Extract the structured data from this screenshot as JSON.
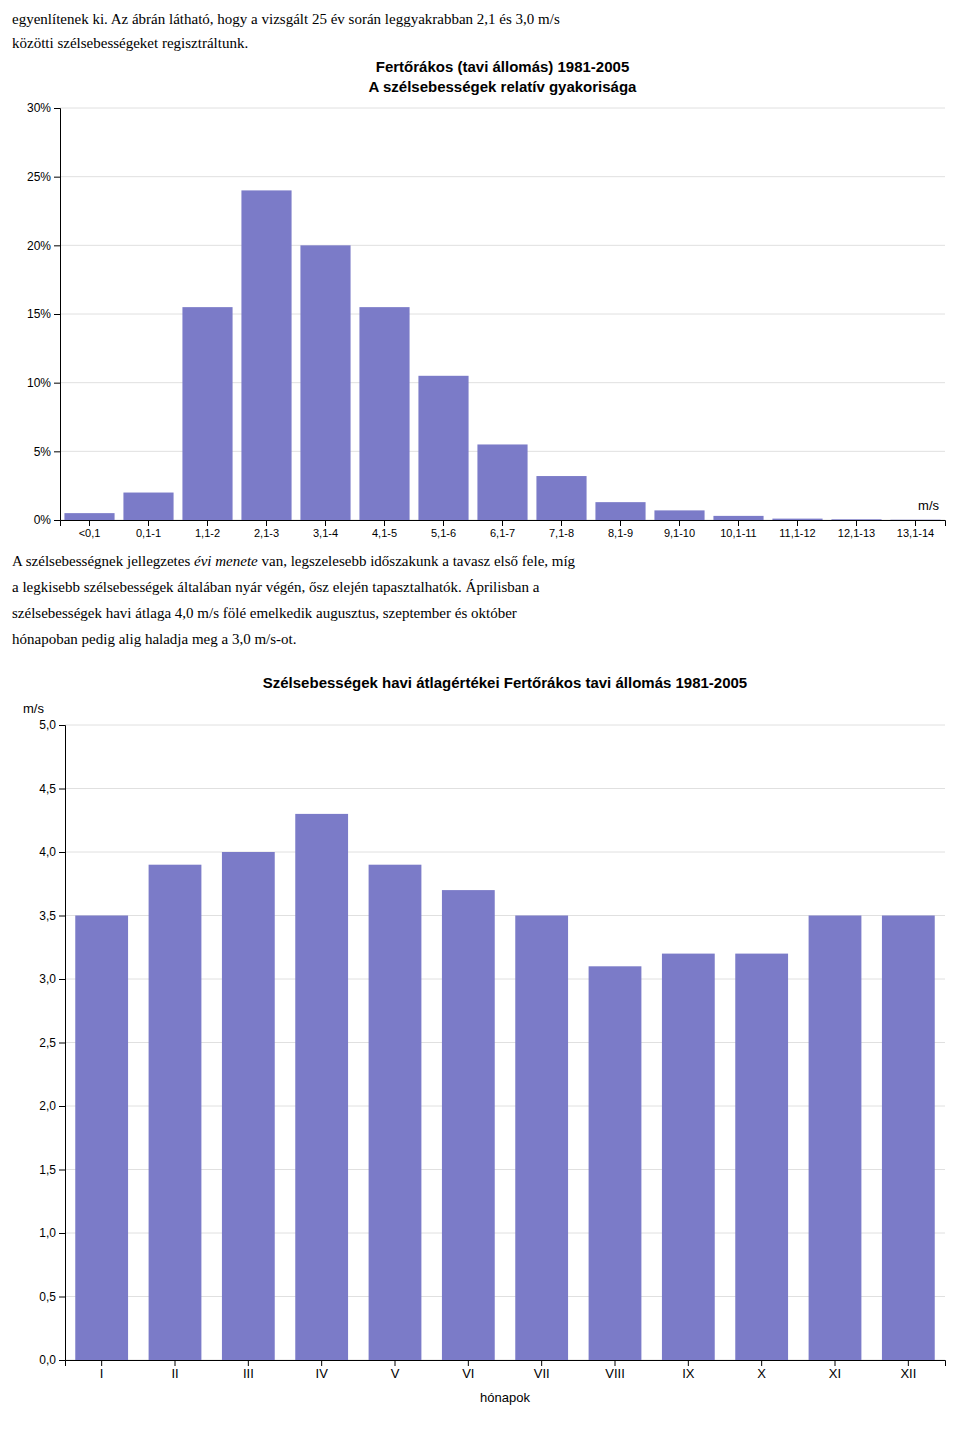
{
  "text_before": [
    "egyenlítenek ki. Az ábrán látható, hogy a vizsgált 25 év során leggyakrabban 2,1 és 3,0 m/s",
    "közötti szélsebességeket regisztráltunk."
  ],
  "text_between": [
    [
      "A szélsebességnek jellegzetes ",
      "évi menete",
      " van, legszelesebb időszakunk a tavasz első fele, míg"
    ],
    "a legkisebb szélsebességek általában nyár végén, ősz elején tapasztalhatók. Áprilisban a",
    "szélsebességek havi átlaga 4,0 m/s fölé emelkedik augusztus, szeptember és október",
    "hónapoban pedig alig haladja meg a 3,0 m/s-ot."
  ],
  "chart_data": [
    {
      "type": "bar",
      "title": "Fertőrákos (tavi állomás) 1981-2005",
      "subtitle": "A szélsebességek relatív gyakorisága",
      "xlabel": "m/s",
      "categories": [
        "<0,1",
        "0,1-1",
        "1,1-2",
        "2,1-3",
        "3,1-4",
        "4,1-5",
        "5,1-6",
        "6,1-7",
        "7,1-8",
        "8,1-9",
        "9,1-10",
        "10,1-11",
        "11,1-12",
        "12,1-13",
        "13,1-14"
      ],
      "values": [
        0.5,
        2.0,
        15.5,
        24.0,
        20.0,
        15.5,
        10.5,
        5.5,
        3.2,
        1.3,
        0.7,
        0.3,
        0.1,
        0.05,
        0.02
      ],
      "color": "#7B7BC8",
      "ylim": [
        0,
        30
      ],
      "yticks": [
        {
          "value": 0,
          "label": "0%"
        },
        {
          "value": 5,
          "label": "5%"
        },
        {
          "value": 10,
          "label": "10%"
        },
        {
          "value": 15,
          "label": "15%"
        },
        {
          "value": 20,
          "label": "20%"
        },
        {
          "value": 25,
          "label": "25%"
        },
        {
          "value": 30,
          "label": "30%"
        }
      ],
      "grid": true
    },
    {
      "type": "bar",
      "title": "Szélsebességek havi átlagértékei Fertőrákos tavi állomás 1981-2005",
      "xlabel": "hónapok",
      "ylabel": "m/s",
      "categories": [
        "I",
        "II",
        "III",
        "IV",
        "V",
        "VI",
        "VII",
        "VIII",
        "IX",
        "X",
        "XI",
        "XII"
      ],
      "values": [
        3.5,
        3.9,
        4.0,
        4.3,
        3.9,
        3.7,
        3.5,
        3.1,
        3.2,
        3.2,
        3.5,
        3.5
      ],
      "color": "#7B7BC8",
      "ylim": [
        0,
        5.0
      ],
      "yticks": [
        {
          "value": 0.0,
          "label": "0,0"
        },
        {
          "value": 0.5,
          "label": "0,5"
        },
        {
          "value": 1.0,
          "label": "1,0"
        },
        {
          "value": 1.5,
          "label": "1,5"
        },
        {
          "value": 2.0,
          "label": "2,0"
        },
        {
          "value": 2.5,
          "label": "2,5"
        },
        {
          "value": 3.0,
          "label": "3,0"
        },
        {
          "value": 3.5,
          "label": "3,5"
        },
        {
          "value": 4.0,
          "label": "4,0"
        },
        {
          "value": 4.5,
          "label": "4,5"
        },
        {
          "value": 5.0,
          "label": "5,0"
        }
      ],
      "grid": true
    }
  ]
}
